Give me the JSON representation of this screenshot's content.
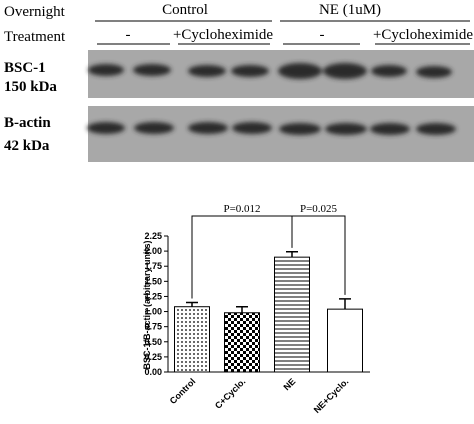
{
  "blot": {
    "header_label_1": "Overnight",
    "header_label_2": "Treatment",
    "groups": [
      "Control",
      "NE (1uM)"
    ],
    "lanes": [
      "-",
      "+Cycloheximide",
      "-",
      "+Cycloheximide"
    ],
    "rows": [
      {
        "name": "BSC-1",
        "size": "150 kDa"
      },
      {
        "name": "B-actin",
        "size": "42 kDa"
      }
    ]
  },
  "chart_data": {
    "type": "bar",
    "y_label": "BSC-1/B-actin (arbitrary units)",
    "categories": [
      "Control",
      "C+Cyclo.",
      "NE",
      "NE+Cyclo."
    ],
    "values": [
      1.08,
      0.98,
      1.9,
      1.04
    ],
    "errors": [
      0.07,
      0.1,
      0.09,
      0.17
    ],
    "color": "#000000",
    "ylim": [
      0,
      2.25
    ],
    "yticks": [
      {
        "value": 0,
        "label": "0.00"
      },
      {
        "value": 0.25,
        "label": "0.25"
      },
      {
        "value": 0.5,
        "label": "0.50"
      },
      {
        "value": 0.75,
        "label": "0.75"
      },
      {
        "value": 1,
        "label": "1.00"
      },
      {
        "value": 1.25,
        "label": "1.25"
      },
      {
        "value": 1.5,
        "label": "1.50"
      },
      {
        "value": 1.75,
        "label": "1.75"
      },
      {
        "value": 2,
        "label": "2.00"
      },
      {
        "value": 2.25,
        "label": "2.25"
      }
    ],
    "annotations": [
      "P=0.012",
      "P=0.025"
    ]
  }
}
